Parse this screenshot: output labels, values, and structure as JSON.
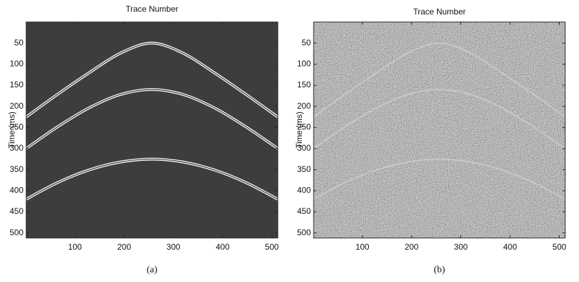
{
  "chart_data": [
    {
      "type": "line",
      "title": "Trace Number",
      "y_label": "Time (ms)",
      "caption": "(a)",
      "background": "#3d3d3d",
      "noise": false,
      "x": [
        1,
        64,
        128,
        192,
        256,
        320,
        384,
        448,
        512
      ],
      "series": [
        {
          "color": "#f2f2f2",
          "values": [
            225,
            172,
            121,
            74,
            50,
            74,
            121,
            172,
            225
          ]
        },
        {
          "color": "#f2f2f2",
          "values": [
            300,
            249,
            204,
            172,
            160,
            172,
            204,
            249,
            300
          ]
        },
        {
          "color": "#f2f2f2",
          "values": [
            420,
            381,
            351,
            332,
            325,
            332,
            351,
            381,
            420
          ]
        }
      ],
      "xlim": [
        1,
        512
      ],
      "ylim": [
        0,
        512
      ],
      "xticks": [
        100,
        200,
        300,
        400,
        500
      ],
      "yticks": [
        50,
        100,
        150,
        200,
        250,
        300,
        350,
        400,
        450,
        500
      ]
    },
    {
      "type": "line",
      "title": "Trace Number",
      "y_label": "Time (ms)",
      "caption": "(b)",
      "background": "#808080",
      "noise": true,
      "x": [
        1,
        64,
        128,
        192,
        256,
        320,
        384,
        448,
        512
      ],
      "series": [
        {
          "color": "#c8c8c8",
          "values": [
            225,
            172,
            121,
            74,
            50,
            74,
            121,
            172,
            225
          ]
        },
        {
          "color": "#c8c8c8",
          "values": [
            300,
            249,
            204,
            172,
            160,
            172,
            204,
            249,
            300
          ]
        },
        {
          "color": "#c8c8c8",
          "values": [
            420,
            381,
            351,
            332,
            325,
            332,
            351,
            381,
            420
          ]
        }
      ],
      "xlim": [
        1,
        512
      ],
      "ylim": [
        0,
        512
      ],
      "xticks": [
        100,
        200,
        300,
        400,
        500
      ],
      "yticks": [
        50,
        100,
        150,
        200,
        250,
        300,
        350,
        400,
        450,
        500
      ]
    }
  ]
}
